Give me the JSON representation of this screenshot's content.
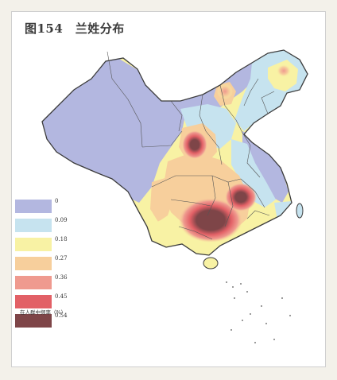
{
  "title": "图154　兰姓分布",
  "legend": {
    "labels": [
      "0",
      "0.09",
      "0.18",
      "0.27",
      "0.36",
      "0.45",
      "0.54"
    ],
    "colors": [
      "#b3b7e0",
      "#c6e3ef",
      "#f8f2a4",
      "#f7cf9c",
      "#ef9a8f",
      "#e26066",
      "#7e4548"
    ],
    "caption": "在人群中频率（%）"
  },
  "colors": {
    "paper": "#ffffff",
    "border": "#3b3b3b",
    "sea": "#ffffff"
  }
}
